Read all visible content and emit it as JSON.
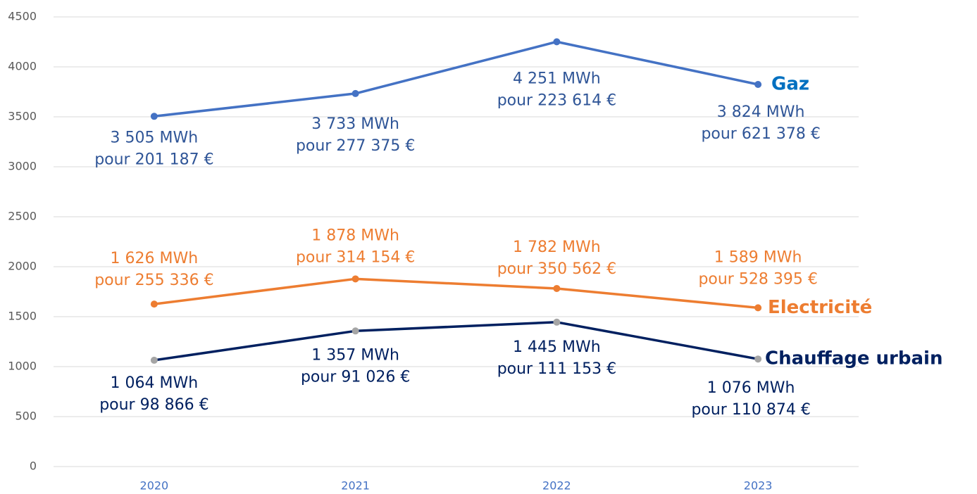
{
  "chart_data": {
    "type": "line",
    "categories": [
      "2020",
      "2021",
      "2022",
      "2023"
    ],
    "ylim": [
      0,
      4500
    ],
    "yticks": [
      0,
      500,
      1000,
      1500,
      2000,
      2500,
      3000,
      3500,
      4000,
      4500
    ],
    "grid": true,
    "legend": "end-of-line",
    "series": [
      {
        "name": "Gaz",
        "color": "#4472c4",
        "marker_color": "#4472c4",
        "label_color": "#2f5597",
        "name_color": "#0070c0",
        "values": [
          3505,
          3733,
          4251,
          3824
        ],
        "value_labels": [
          "3 505 MWh",
          "3 733 MWh",
          "4 251 MWh",
          "3 824 MWh"
        ],
        "cost_labels": [
          "pour 201 187 €",
          "pour 277 375 €",
          "pour 223 614 €",
          "pour 621 378 €"
        ]
      },
      {
        "name": "Electricité",
        "color": "#ed7d31",
        "marker_color": "#ed7d31",
        "label_color": "#ed7d31",
        "name_color": "#ed7d31",
        "values": [
          1626,
          1878,
          1782,
          1589
        ],
        "value_labels": [
          "1 626 MWh",
          "1 878 MWh",
          "1 782 MWh",
          "1 589 MWh"
        ],
        "cost_labels": [
          "pour 255 336 €",
          "pour 314 154 €",
          "pour 350 562 €",
          "pour 528 395 €"
        ]
      },
      {
        "name": "Chauffage urbain",
        "color": "#002060",
        "marker_color": "#a5a5a5",
        "label_color": "#002060",
        "name_color": "#002060",
        "values": [
          1064,
          1357,
          1445,
          1076
        ],
        "value_labels": [
          "1 064 MWh",
          "1 357 MWh",
          "1 445 MWh",
          "1 076 MWh"
        ],
        "cost_labels": [
          "pour 98 866 €",
          "pour 91 026 €",
          "pour 111 153 €",
          "pour 110 874 €"
        ]
      }
    ]
  }
}
